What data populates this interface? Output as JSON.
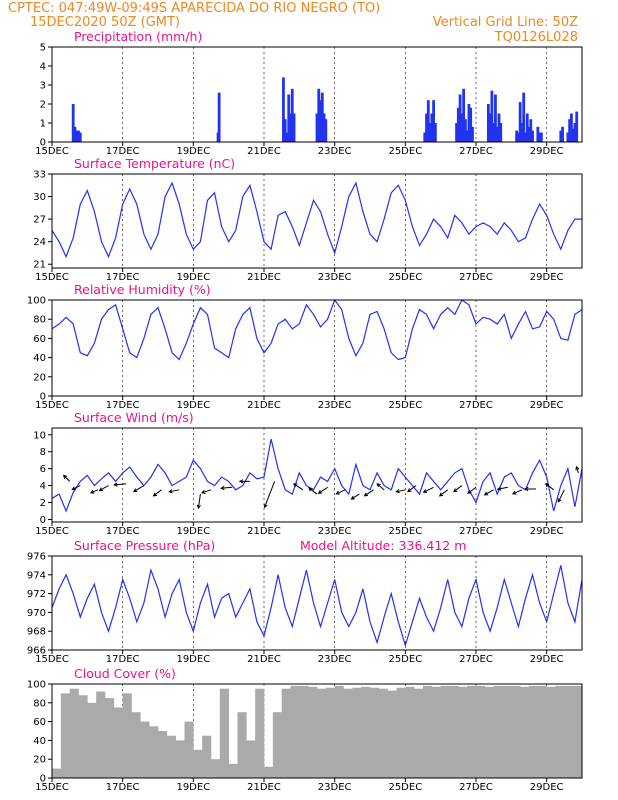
{
  "header": {
    "line1": "CPTEC:   047:49W-09:49S  APARECIDA DO RIO NEGRO (TO)",
    "date": "15DEC2020 50Z (GMT)",
    "grid_note": "Vertical Grid Line: 50Z",
    "model": "TQ0126L028"
  },
  "colors": {
    "header": "#ee8822",
    "title": "#ee1188",
    "series": "#2233ee",
    "cloud": "#aaaaaa"
  },
  "chart_data": [
    {
      "id": "precip",
      "type": "bar",
      "title": "Precipitation (mm/h)",
      "xlim": [
        15,
        30
      ],
      "ylim": [
        0,
        5
      ],
      "yticks": [
        0,
        1,
        2,
        3,
        4,
        5
      ],
      "xticks": [
        15,
        17,
        19,
        21,
        23,
        25,
        27,
        29
      ],
      "xtick_labels": [
        "15DEC",
        "17DEC",
        "19DEC",
        "21DEC",
        "23DEC",
        "25DEC",
        "27DEC",
        "29DEC"
      ],
      "x": [
        15.6,
        15.65,
        15.7,
        15.75,
        15.8,
        19.7,
        19.73,
        21.55,
        21.6,
        21.65,
        21.7,
        21.75,
        21.8,
        21.85,
        22.5,
        22.55,
        22.6,
        22.65,
        22.7,
        22.75,
        25.55,
        25.6,
        25.65,
        25.7,
        25.75,
        25.8,
        25.85,
        26.45,
        26.5,
        26.55,
        26.6,
        26.65,
        26.7,
        26.75,
        26.8,
        26.85,
        26.9,
        27.35,
        27.4,
        27.45,
        27.5,
        27.55,
        27.6,
        27.65,
        27.7,
        28.15,
        28.2,
        28.25,
        28.3,
        28.35,
        28.4,
        28.45,
        28.5,
        28.55,
        28.6,
        28.75,
        28.8,
        28.85,
        29.4,
        29.45,
        29.6,
        29.65,
        29.7,
        29.75,
        29.8,
        29.85
      ],
      "values": [
        2.0,
        0.8,
        0.6,
        0.6,
        0.5,
        0.5,
        2.6,
        3.4,
        1.2,
        0.5,
        2.5,
        1.5,
        2.8,
        1.5,
        1.5,
        2.8,
        2.2,
        2.6,
        1.5,
        1.2,
        0.5,
        1.5,
        2.2,
        1.0,
        1.5,
        2.2,
        1.0,
        1.0,
        1.8,
        2.5,
        1.5,
        2.8,
        1.2,
        0.6,
        2.0,
        1.8,
        0.8,
        2.0,
        1.5,
        2.7,
        1.0,
        2.5,
        0.8,
        1.5,
        1.0,
        0.6,
        0.5,
        2.1,
        1.0,
        2.6,
        0.5,
        1.5,
        0.8,
        1.2,
        0.6,
        0.8,
        0.5,
        0.5,
        0.6,
        0.8,
        0.5,
        1.2,
        1.5,
        0.7,
        1.0,
        1.6
      ]
    },
    {
      "id": "temp",
      "type": "line",
      "title": "Surface Temperature (nC)",
      "xlim": [
        15,
        30
      ],
      "ylim": [
        20.5,
        33
      ],
      "yticks": [
        21,
        24,
        27,
        30,
        33
      ],
      "xticks": [
        15,
        17,
        19,
        21,
        23,
        25,
        27,
        29
      ],
      "xtick_labels": [
        "15DEC",
        "17DEC",
        "19DEC",
        "21DEC",
        "23DEC",
        "25DEC",
        "27DEC",
        "29DEC"
      ],
      "x": [
        15.0,
        15.2,
        15.4,
        15.6,
        15.8,
        16.0,
        16.2,
        16.4,
        16.6,
        16.8,
        17.0,
        17.2,
        17.4,
        17.6,
        17.8,
        18.0,
        18.2,
        18.4,
        18.6,
        18.8,
        19.0,
        19.2,
        19.4,
        19.6,
        19.8,
        20.0,
        20.2,
        20.4,
        20.6,
        20.8,
        21.0,
        21.2,
        21.4,
        21.6,
        21.8,
        22.0,
        22.2,
        22.4,
        22.6,
        22.8,
        23.0,
        23.2,
        23.4,
        23.6,
        23.8,
        24.0,
        24.2,
        24.4,
        24.6,
        24.8,
        25.0,
        25.2,
        25.4,
        25.6,
        25.8,
        26.0,
        26.2,
        26.4,
        26.6,
        26.8,
        27.0,
        27.2,
        27.4,
        27.6,
        27.8,
        28.0,
        28.2,
        28.4,
        28.6,
        28.8,
        29.0,
        29.2,
        29.4,
        29.6,
        29.8,
        30.0
      ],
      "values": [
        25.5,
        24.0,
        22.0,
        24.5,
        29.0,
        30.8,
        28.0,
        24.0,
        22.0,
        24.5,
        29.0,
        31.0,
        29.0,
        25.0,
        23.0,
        25.0,
        30.0,
        31.8,
        29.0,
        25.0,
        23.0,
        24.0,
        29.5,
        30.5,
        26.0,
        24.0,
        25.5,
        30.0,
        31.5,
        28.0,
        24.0,
        23.0,
        27.5,
        28.0,
        26.0,
        23.5,
        26.5,
        29.5,
        28.0,
        25.0,
        22.5,
        26.0,
        30.0,
        31.8,
        28.0,
        25.0,
        24.0,
        27.0,
        30.5,
        31.5,
        29.5,
        26.0,
        23.5,
        25.0,
        27.0,
        26.0,
        24.5,
        27.5,
        26.5,
        25.0,
        26.0,
        26.5,
        26.0,
        25.0,
        26.5,
        25.5,
        24.0,
        24.5,
        27.0,
        29.0,
        27.5,
        25.0,
        23.0,
        25.5,
        27.0,
        27.0
      ]
    },
    {
      "id": "rh",
      "type": "line",
      "title": "Relative Humidity (%)",
      "xlim": [
        15,
        30
      ],
      "ylim": [
        0,
        100
      ],
      "yticks": [
        0,
        20,
        40,
        60,
        80,
        100
      ],
      "xticks": [
        15,
        17,
        19,
        21,
        23,
        25,
        27,
        29
      ],
      "xtick_labels": [
        "15DEC",
        "17DEC",
        "19DEC",
        "21DEC",
        "23DEC",
        "25DEC",
        "27DEC",
        "29DEC"
      ],
      "x": [
        15.0,
        15.2,
        15.4,
        15.6,
        15.8,
        16.0,
        16.2,
        16.4,
        16.6,
        16.8,
        17.0,
        17.2,
        17.4,
        17.6,
        17.8,
        18.0,
        18.2,
        18.4,
        18.6,
        18.8,
        19.0,
        19.2,
        19.4,
        19.6,
        19.8,
        20.0,
        20.2,
        20.4,
        20.6,
        20.8,
        21.0,
        21.2,
        21.4,
        21.6,
        21.8,
        22.0,
        22.2,
        22.4,
        22.6,
        22.8,
        23.0,
        23.2,
        23.4,
        23.6,
        23.8,
        24.0,
        24.2,
        24.4,
        24.6,
        24.8,
        25.0,
        25.2,
        25.4,
        25.6,
        25.8,
        26.0,
        26.2,
        26.4,
        26.6,
        26.8,
        27.0,
        27.2,
        27.4,
        27.6,
        27.8,
        28.0,
        28.2,
        28.4,
        28.6,
        28.8,
        29.0,
        29.2,
        29.4,
        29.6,
        29.8,
        30.0
      ],
      "values": [
        70,
        75,
        82,
        75,
        45,
        42,
        55,
        80,
        90,
        95,
        70,
        45,
        40,
        60,
        85,
        92,
        70,
        45,
        38,
        55,
        75,
        92,
        85,
        50,
        45,
        40,
        70,
        85,
        92,
        60,
        45,
        55,
        75,
        80,
        70,
        75,
        95,
        85,
        72,
        80,
        100,
        90,
        60,
        42,
        55,
        85,
        88,
        70,
        45,
        38,
        40,
        70,
        90,
        85,
        70,
        85,
        92,
        85,
        100,
        95,
        75,
        82,
        80,
        75,
        85,
        60,
        75,
        88,
        70,
        72,
        88,
        80,
        60,
        58,
        85,
        90
      ]
    },
    {
      "id": "wind",
      "type": "line",
      "title": "Surface Wind (m/s)",
      "xlim": [
        15,
        30
      ],
      "ylim": [
        -0.3,
        10.8
      ],
      "yticks": [
        0,
        2,
        4,
        6,
        8,
        10
      ],
      "xticks": [
        15,
        17,
        19,
        21,
        23,
        25,
        27,
        29
      ],
      "xtick_labels": [
        "15DEC",
        "17DEC",
        "19DEC",
        "21DEC",
        "23DEC",
        "25DEC",
        "27DEC",
        "29DEC"
      ],
      "x": [
        15.0,
        15.2,
        15.4,
        15.6,
        15.8,
        16.0,
        16.2,
        16.4,
        16.6,
        16.8,
        17.0,
        17.2,
        17.4,
        17.6,
        17.8,
        18.0,
        18.2,
        18.4,
        18.6,
        18.8,
        19.0,
        19.2,
        19.4,
        19.6,
        19.8,
        20.0,
        20.2,
        20.4,
        20.6,
        20.8,
        21.0,
        21.2,
        21.4,
        21.6,
        21.8,
        22.0,
        22.2,
        22.4,
        22.6,
        22.8,
        23.0,
        23.2,
        23.4,
        23.6,
        23.8,
        24.0,
        24.2,
        24.4,
        24.6,
        24.8,
        25.0,
        25.2,
        25.4,
        25.6,
        25.8,
        26.0,
        26.2,
        26.4,
        26.6,
        26.8,
        27.0,
        27.2,
        27.4,
        27.6,
        27.8,
        28.0,
        28.2,
        28.4,
        28.6,
        28.8,
        29.0,
        29.2,
        29.4,
        29.6,
        29.8,
        30.0
      ],
      "values": [
        2.5,
        3.0,
        1.0,
        3.2,
        4.5,
        5.2,
        4.0,
        4.8,
        5.5,
        4.5,
        5.5,
        6.2,
        5.0,
        4.0,
        5.0,
        6.5,
        5.5,
        4.0,
        4.5,
        5.0,
        7.0,
        6.0,
        4.5,
        4.0,
        5.0,
        4.5,
        3.5,
        4.0,
        5.5,
        4.8,
        5.0,
        9.5,
        6.0,
        3.5,
        3.0,
        5.5,
        4.0,
        3.5,
        5.0,
        4.5,
        6.0,
        4.0,
        3.0,
        6.5,
        4.0,
        3.5,
        5.5,
        4.0,
        3.5,
        6.0,
        5.0,
        4.0,
        3.0,
        5.5,
        4.5,
        3.5,
        4.5,
        5.5,
        6.0,
        3.5,
        2.0,
        4.5,
        5.5,
        3.0,
        5.0,
        5.5,
        4.0,
        3.5,
        5.5,
        7.0,
        5.0,
        1.0,
        4.0,
        6.0,
        1.5,
        6.0
      ],
      "arrows": [
        {
          "x": 15.5,
          "y": 4.5,
          "dx": -6,
          "dy": -6
        },
        {
          "x": 15.8,
          "y": 4.0,
          "dx": -8,
          "dy": 4
        },
        {
          "x": 16.3,
          "y": 3.5,
          "dx": -7,
          "dy": 3
        },
        {
          "x": 16.6,
          "y": 4.0,
          "dx": -9,
          "dy": 5
        },
        {
          "x": 17.1,
          "y": 4.2,
          "dx": -12,
          "dy": 1
        },
        {
          "x": 17.6,
          "y": 4.0,
          "dx": -10,
          "dy": 6
        },
        {
          "x": 18.1,
          "y": 3.5,
          "dx": -8,
          "dy": 6
        },
        {
          "x": 18.6,
          "y": 3.5,
          "dx": -10,
          "dy": 2
        },
        {
          "x": 19.2,
          "y": 3.0,
          "dx": -2,
          "dy": 14
        },
        {
          "x": 19.5,
          "y": 3.5,
          "dx": -9,
          "dy": 3
        },
        {
          "x": 20.1,
          "y": 3.8,
          "dx": -11,
          "dy": 1
        },
        {
          "x": 20.6,
          "y": 4.5,
          "dx": -10,
          "dy": 0
        },
        {
          "x": 21.3,
          "y": 4.5,
          "dx": -10,
          "dy": 26
        },
        {
          "x": 22.1,
          "y": 3.5,
          "dx": -9,
          "dy": -6
        },
        {
          "x": 22.5,
          "y": 3.0,
          "dx": -8,
          "dy": -6
        },
        {
          "x": 22.8,
          "y": 3.8,
          "dx": -9,
          "dy": 6
        },
        {
          "x": 23.3,
          "y": 3.5,
          "dx": -9,
          "dy": 4
        },
        {
          "x": 23.7,
          "y": 3.0,
          "dx": -8,
          "dy": 5
        },
        {
          "x": 24.1,
          "y": 3.5,
          "dx": -9,
          "dy": 6
        },
        {
          "x": 24.4,
          "y": 3.5,
          "dx": -7,
          "dy": -6
        },
        {
          "x": 25.0,
          "y": 3.5,
          "dx": -9,
          "dy": 2
        },
        {
          "x": 25.3,
          "y": 4.0,
          "dx": -8,
          "dy": 6
        },
        {
          "x": 25.8,
          "y": 3.8,
          "dx": -10,
          "dy": 5
        },
        {
          "x": 26.2,
          "y": 3.5,
          "dx": -8,
          "dy": 6
        },
        {
          "x": 26.6,
          "y": 4.0,
          "dx": -8,
          "dy": 6
        },
        {
          "x": 27.0,
          "y": 3.8,
          "dx": -8,
          "dy": 6
        },
        {
          "x": 27.5,
          "y": 3.5,
          "dx": -9,
          "dy": 5
        },
        {
          "x": 27.9,
          "y": 3.8,
          "dx": -10,
          "dy": 2
        },
        {
          "x": 28.3,
          "y": 3.5,
          "dx": -9,
          "dy": 4
        },
        {
          "x": 28.7,
          "y": 3.6,
          "dx": -11,
          "dy": 0
        },
        {
          "x": 29.2,
          "y": 3.5,
          "dx": -8,
          "dy": -6
        },
        {
          "x": 29.5,
          "y": 3.5,
          "dx": -6,
          "dy": 12
        },
        {
          "x": 29.9,
          "y": 5.5,
          "dx": -2,
          "dy": -6
        }
      ]
    },
    {
      "id": "pres",
      "type": "line",
      "title": "Surface Pressure (hPa)",
      "annotation": "Model Altitude: 336.412  m",
      "xlim": [
        15,
        30
      ],
      "ylim": [
        966,
        976
      ],
      "yticks": [
        966,
        968,
        970,
        972,
        974,
        976
      ],
      "xticks": [
        15,
        17,
        19,
        21,
        23,
        25,
        27,
        29
      ],
      "xtick_labels": [
        "15DEC",
        "17DEC",
        "19DEC",
        "21DEC",
        "23DEC",
        "25DEC",
        "27DEC",
        "29DEC"
      ],
      "x": [
        15.0,
        15.2,
        15.4,
        15.6,
        15.8,
        16.0,
        16.2,
        16.4,
        16.6,
        16.8,
        17.0,
        17.2,
        17.4,
        17.6,
        17.8,
        18.0,
        18.2,
        18.4,
        18.6,
        18.8,
        19.0,
        19.2,
        19.4,
        19.6,
        19.8,
        20.0,
        20.2,
        20.4,
        20.6,
        20.8,
        21.0,
        21.2,
        21.4,
        21.6,
        21.8,
        22.0,
        22.2,
        22.4,
        22.6,
        22.8,
        23.0,
        23.2,
        23.4,
        23.6,
        23.8,
        24.0,
        24.2,
        24.4,
        24.6,
        24.8,
        25.0,
        25.2,
        25.4,
        25.6,
        25.8,
        26.0,
        26.2,
        26.4,
        26.6,
        26.8,
        27.0,
        27.2,
        27.4,
        27.6,
        27.8,
        28.0,
        28.2,
        28.4,
        28.6,
        28.8,
        29.0,
        29.2,
        29.4,
        29.6,
        29.8,
        30.0
      ],
      "values": [
        970.5,
        972.5,
        974.0,
        972.0,
        969.5,
        971.5,
        973.0,
        970.0,
        968.0,
        970.5,
        973.5,
        971.5,
        969.0,
        971.0,
        974.5,
        972.5,
        969.5,
        972.0,
        973.5,
        970.0,
        968.0,
        971.0,
        973.0,
        969.5,
        971.5,
        972.0,
        969.5,
        971.0,
        972.5,
        969.0,
        967.5,
        970.5,
        974.0,
        970.5,
        968.5,
        971.5,
        974.5,
        971.0,
        968.5,
        971.0,
        973.5,
        970.0,
        968.5,
        970.0,
        972.5,
        969.0,
        966.8,
        969.5,
        972.0,
        969.0,
        966.5,
        969.0,
        971.5,
        969.5,
        968.0,
        970.5,
        973.5,
        970.0,
        968.5,
        971.5,
        973.5,
        970.0,
        968.0,
        970.5,
        973.5,
        971.0,
        968.5,
        971.5,
        974.0,
        971.0,
        969.0,
        972.0,
        975.0,
        971.0,
        969.0,
        973.5
      ]
    },
    {
      "id": "cloud",
      "type": "bar",
      "title": "Cloud Cover (%)",
      "xlim": [
        15,
        30
      ],
      "ylim": [
        0,
        100
      ],
      "yticks": [
        0,
        20,
        40,
        60,
        80,
        100
      ],
      "xticks": [
        15,
        17,
        19,
        21,
        23,
        25,
        27,
        29
      ],
      "xtick_labels": [
        "15DEC",
        "17DEC",
        "19DEC",
        "21DEC",
        "23DEC",
        "25DEC",
        "27DEC",
        "29DEC"
      ],
      "x": [
        15.0,
        15.25,
        15.5,
        15.75,
        16.0,
        16.25,
        16.5,
        16.75,
        17.0,
        17.25,
        17.5,
        17.75,
        18.0,
        18.25,
        18.5,
        18.75,
        19.0,
        19.25,
        19.5,
        19.75,
        20.0,
        20.25,
        20.5,
        20.75,
        21.0,
        21.25,
        21.5,
        21.75,
        22.0,
        22.25,
        22.5,
        22.75,
        23.0,
        23.25,
        23.5,
        23.75,
        24.0,
        24.25,
        24.5,
        24.75,
        25.0,
        25.25,
        25.5,
        25.75,
        26.0,
        26.25,
        26.5,
        26.75,
        27.0,
        27.25,
        27.5,
        27.75,
        28.0,
        28.25,
        28.5,
        28.75,
        29.0,
        29.25,
        29.5,
        29.75
      ],
      "values": [
        10,
        90,
        95,
        88,
        80,
        92,
        85,
        75,
        90,
        70,
        60,
        55,
        50,
        45,
        40,
        60,
        30,
        45,
        20,
        95,
        15,
        70,
        40,
        95,
        12,
        70,
        95,
        98,
        98,
        97,
        95,
        96,
        98,
        95,
        96,
        97,
        96,
        95,
        93,
        96,
        97,
        95,
        98,
        97,
        98,
        98,
        97,
        98,
        98,
        97,
        98,
        98,
        98,
        97,
        98,
        98,
        97,
        98,
        98,
        98
      ]
    }
  ]
}
